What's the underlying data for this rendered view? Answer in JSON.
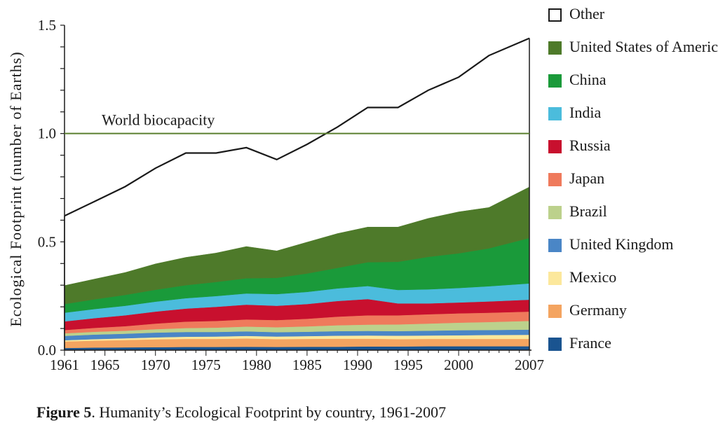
{
  "chart_data": {
    "type": "area",
    "stacked": true,
    "title": "",
    "xlabel": "",
    "ylabel": "Ecological Footprint (number of Earths)",
    "xlim": [
      1961,
      2007
    ],
    "ylim": [
      0,
      1.5
    ],
    "x_tick_labels": [
      "1961",
      "1965",
      "1970",
      "1975",
      "1980",
      "1985",
      "1990",
      "1995",
      "2000",
      "2007"
    ],
    "y_tick_labels": [
      "0.0",
      "0.5",
      "1.0",
      "1.5"
    ],
    "x": [
      1961,
      1964,
      1967,
      1970,
      1973,
      1976,
      1979,
      1982,
      1985,
      1988,
      1991,
      1994,
      1997,
      2000,
      2003,
      2007
    ],
    "series": [
      {
        "name": "France",
        "color": "#1a5490",
        "values": [
          0.01,
          0.012,
          0.013,
          0.014,
          0.015,
          0.015,
          0.016,
          0.015,
          0.016,
          0.016,
          0.017,
          0.017,
          0.018,
          0.018,
          0.018,
          0.018
        ]
      },
      {
        "name": "Germany",
        "color": "#f4a460",
        "values": [
          0.03,
          0.032,
          0.034,
          0.036,
          0.037,
          0.037,
          0.038,
          0.036,
          0.036,
          0.037,
          0.036,
          0.034,
          0.034,
          0.034,
          0.034,
          0.034
        ]
      },
      {
        "name": "Mexico",
        "color": "#fce89c",
        "values": [
          0.006,
          0.007,
          0.008,
          0.009,
          0.01,
          0.011,
          0.012,
          0.012,
          0.013,
          0.014,
          0.015,
          0.016,
          0.016,
          0.017,
          0.018,
          0.019
        ]
      },
      {
        "name": "United Kingdom",
        "color": "#4a86c6",
        "values": [
          0.02,
          0.021,
          0.021,
          0.022,
          0.022,
          0.021,
          0.021,
          0.02,
          0.02,
          0.021,
          0.021,
          0.021,
          0.022,
          0.023,
          0.023,
          0.024
        ]
      },
      {
        "name": "Brazil",
        "color": "#bcd18c",
        "values": [
          0.012,
          0.013,
          0.014,
          0.016,
          0.018,
          0.02,
          0.022,
          0.023,
          0.025,
          0.027,
          0.029,
          0.031,
          0.033,
          0.035,
          0.037,
          0.04
        ]
      },
      {
        "name": "Japan",
        "color": "#ef7a5c",
        "values": [
          0.015,
          0.018,
          0.021,
          0.026,
          0.03,
          0.031,
          0.033,
          0.033,
          0.035,
          0.04,
          0.043,
          0.042,
          0.043,
          0.043,
          0.043,
          0.043
        ]
      },
      {
        "name": "Russia",
        "color": "#c8102e",
        "values": [
          0.04,
          0.045,
          0.05,
          0.055,
          0.06,
          0.065,
          0.068,
          0.066,
          0.068,
          0.072,
          0.075,
          0.055,
          0.05,
          0.05,
          0.052,
          0.055
        ]
      },
      {
        "name": "India",
        "color": "#4bbcdc",
        "values": [
          0.04,
          0.042,
          0.044,
          0.046,
          0.048,
          0.05,
          0.052,
          0.054,
          0.056,
          0.058,
          0.06,
          0.062,
          0.065,
          0.067,
          0.07,
          0.075
        ]
      },
      {
        "name": "China",
        "color": "#1a9a3a",
        "values": [
          0.04,
          0.045,
          0.05,
          0.055,
          0.06,
          0.065,
          0.07,
          0.075,
          0.085,
          0.095,
          0.11,
          0.13,
          0.15,
          0.16,
          0.175,
          0.21
        ]
      },
      {
        "name": "United States of America",
        "color": "#4e7a2a",
        "values": [
          0.087,
          0.095,
          0.105,
          0.121,
          0.13,
          0.135,
          0.148,
          0.126,
          0.146,
          0.16,
          0.164,
          0.162,
          0.179,
          0.193,
          0.19,
          0.237
        ]
      },
      {
        "name": "Other",
        "color": "#ffffff",
        "values": [
          0.32,
          0.357,
          0.395,
          0.44,
          0.48,
          0.46,
          0.455,
          0.42,
          0.45,
          0.49,
          0.55,
          0.55,
          0.59,
          0.62,
          0.7,
          0.685
        ]
      }
    ],
    "legend_order": [
      "Other",
      "United States of America",
      "China",
      "India",
      "Russia",
      "Japan",
      "Brazil",
      "United Kingdom",
      "Mexico",
      "Germany",
      "France"
    ],
    "reference_line": {
      "value": 1.0,
      "label": "World biocapacity",
      "color": "#5a7f2e"
    },
    "total_line_color": "#1a1a1a",
    "grid": false,
    "legend_position": "right"
  },
  "caption": {
    "figure_number": "Figure 5",
    "text": ".  Humanity’s Ecological Footprint by country, 1961-2007"
  }
}
